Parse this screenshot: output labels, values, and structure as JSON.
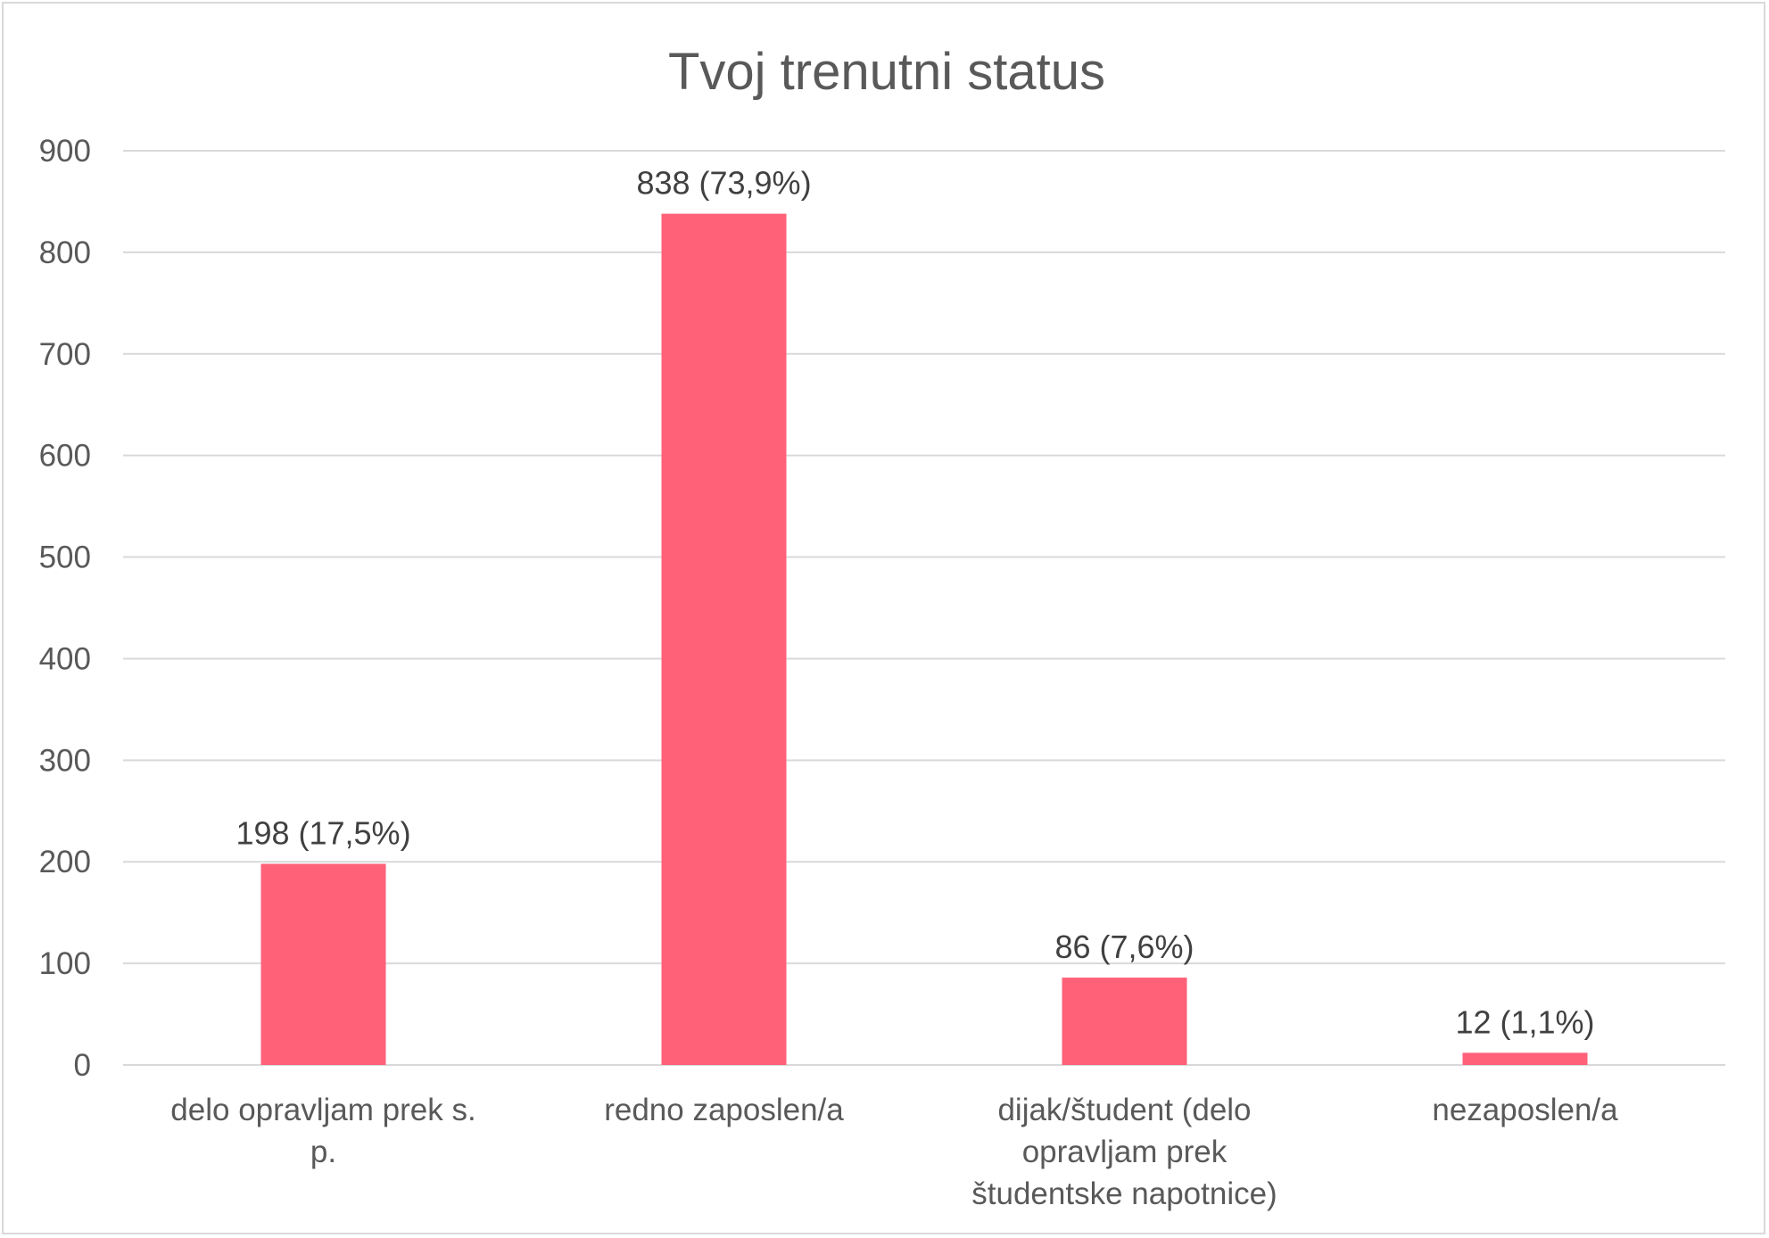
{
  "chart_data": {
    "type": "bar",
    "title": "Tvoj trenutni status",
    "xlabel": "",
    "ylabel": "",
    "categories": [
      [
        "delo opravljam prek s.",
        "p."
      ],
      [
        "redno zaposlen/a"
      ],
      [
        "dijak/študent (delo",
        "opravljam prek",
        "študentske napotnice)"
      ],
      [
        "nezaposlen/a"
      ]
    ],
    "values": [
      198,
      838,
      86,
      12
    ],
    "data_labels": [
      "198 (17,5%)",
      "838 (73,9%)",
      "86 (7,6%)",
      "12 (1,1%)"
    ],
    "ylim": [
      0,
      900
    ],
    "yticks": [
      0,
      100,
      200,
      300,
      400,
      500,
      600,
      700,
      800,
      900
    ],
    "grid": true,
    "legend": "none",
    "colors": {
      "bar": "#ff6179",
      "grid": "#d9d9d9",
      "text": "#595959",
      "label": "#404040"
    }
  }
}
